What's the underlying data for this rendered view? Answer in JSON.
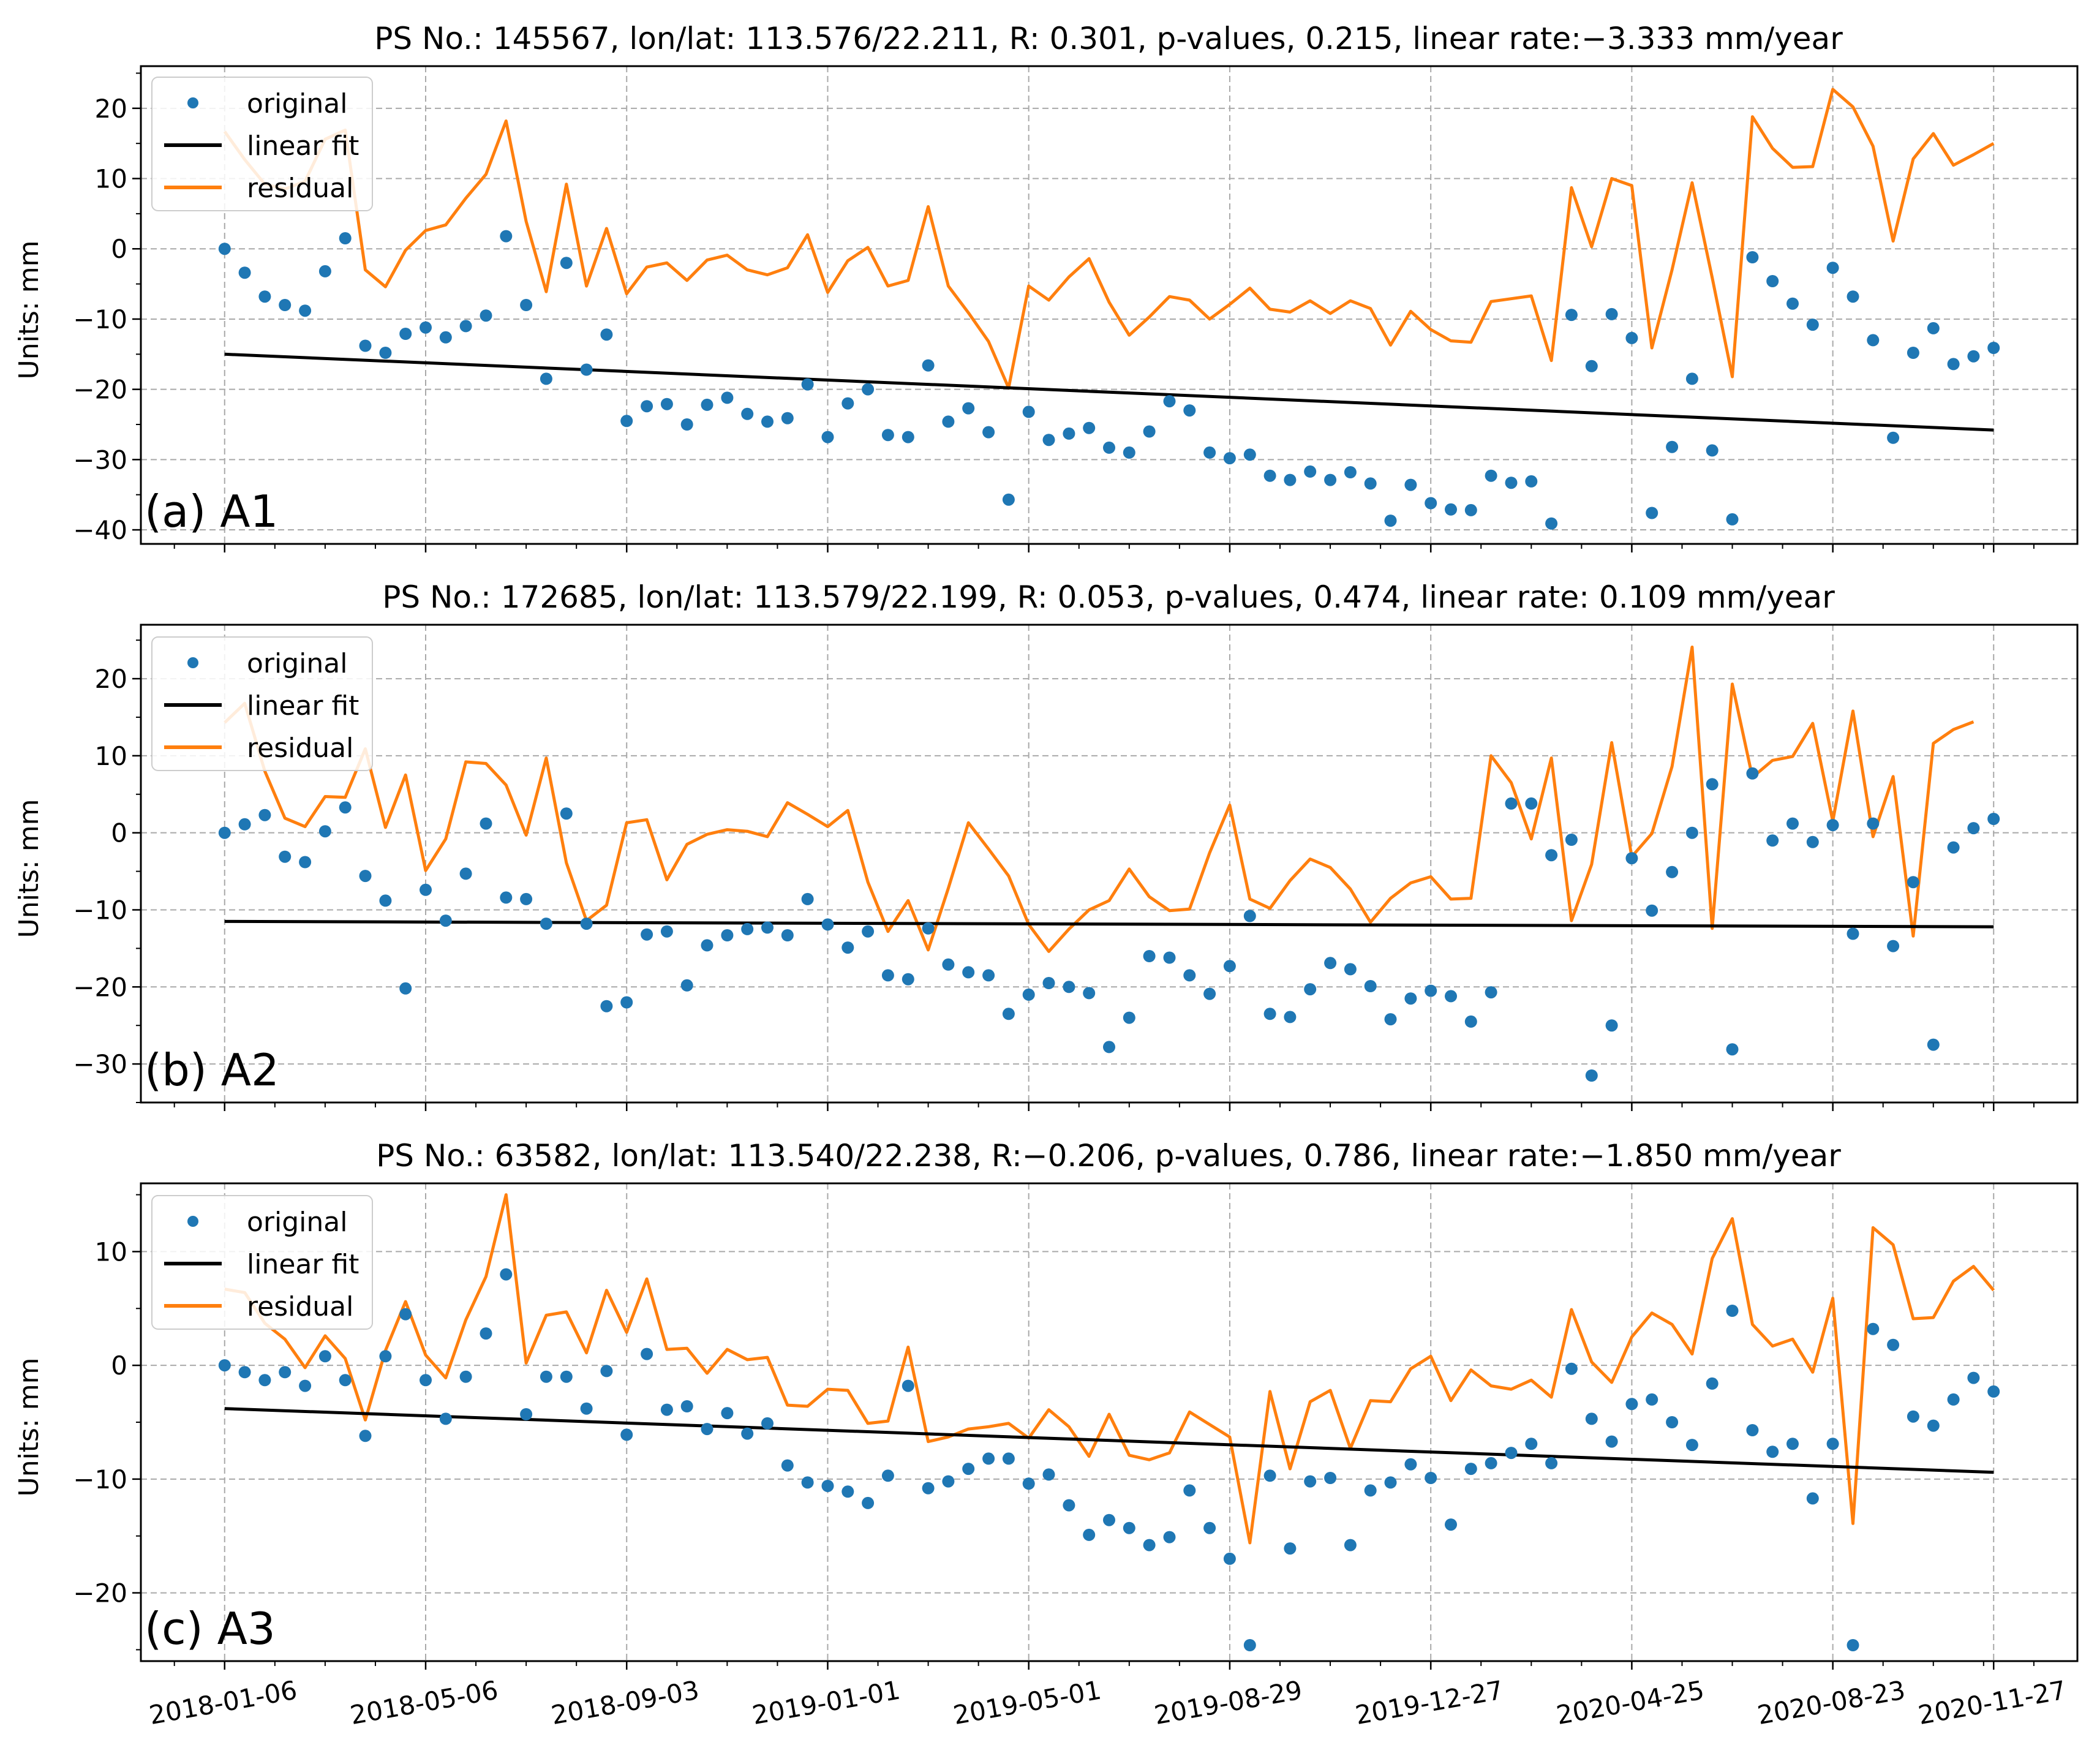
{
  "shared": {
    "x_tick_labels": [
      "2018-01-06",
      "2018-05-06",
      "2018-09-03",
      "2019-01-01",
      "2019-05-01",
      "2019-08-29",
      "2019-12-27",
      "2020-04-25",
      "2020-08-23",
      "2020-11-27"
    ],
    "x_tick_days": [
      0,
      120,
      240,
      360,
      480,
      600,
      720,
      840,
      960,
      1056
    ],
    "x_range_days": [
      -50,
      1106
    ],
    "legend": {
      "original": "original",
      "linear_fit": "linear fit",
      "residual": "residual"
    },
    "colors": {
      "original": "#1f77b4",
      "linear_fit": "#000000",
      "residual": "#ff7f0e",
      "grid": "#a9a9a9"
    },
    "ylabel": "Units: mm"
  },
  "chart_data": [
    {
      "type": "scatter+line",
      "panel_label": "(a) A1",
      "title": "PS No.: 145567, lon/lat: 113.576/22.211, R: 0.301, p-values, 0.215, linear rate:−3.333 mm/year",
      "ylabel": "Units: mm",
      "ylim": [
        -42,
        26
      ],
      "yticks": [
        -40,
        -30,
        -20,
        -10,
        0,
        10,
        20
      ],
      "linear_fit": [
        -15.0,
        -25.8
      ],
      "original": [
        0,
        -3.4,
        -6.8,
        -8.0,
        -8.8,
        -3.2,
        1.5,
        -13.8,
        -14.8,
        -12.1,
        -11.2,
        -12.6,
        -11.0,
        -9.5,
        1.8,
        -8.0,
        -18.5,
        -2.0,
        -17.2,
        -12.2,
        -24.5,
        -22.4,
        -22.1,
        -25.0,
        -22.2,
        -21.2,
        -23.5,
        -24.6,
        -24.1,
        -19.3,
        -26.8,
        -22.0,
        -20.0,
        -26.5,
        -26.8,
        -16.6,
        -24.6,
        -22.7,
        -26.1,
        -35.7,
        -23.2,
        -27.2,
        -26.3,
        -25.5,
        -28.3,
        -29.0,
        -26.0,
        -21.7,
        -23.0,
        -29.0,
        -29.8,
        -29.3,
        -32.3,
        -32.9,
        -31.7,
        -32.9,
        -31.8,
        -33.4,
        -38.7,
        -33.6,
        -36.2,
        -37.1,
        -37.2,
        -32.3,
        -33.3,
        -33.1,
        -39.1,
        -9.4,
        -16.7,
        -9.3,
        -12.7,
        -37.6,
        -28.2,
        -18.5,
        -28.7,
        -38.5,
        -1.2,
        -4.6,
        -7.8,
        -10.8,
        -2.7,
        -6.8,
        -13.0,
        -26.9,
        -14.8,
        -11.3,
        -16.4,
        -15.3,
        -14.1
      ],
      "residual": [
        16.7,
        12.7,
        9.2,
        8.5,
        9.6,
        15.6,
        16.9,
        -3.0,
        -5.4,
        -0.2,
        2.6,
        3.4,
        7.2,
        10.6,
        18.2,
        3.9,
        -6.1,
        9.2,
        -5.3,
        2.9,
        -6.4,
        -2.6,
        -2.0,
        -4.5,
        -1.6,
        -0.9,
        -3.0,
        -3.7,
        -2.7,
        2.0,
        -6.2,
        -1.7,
        0.2,
        -5.3,
        -4.5,
        6.0,
        -5.3,
        -9.1,
        -13.2,
        -19.8,
        -5.3,
        -7.3,
        -4.0,
        -1.4,
        -7.6,
        -12.3,
        -9.7,
        -6.8,
        -7.3,
        -10.0,
        -7.9,
        -5.6,
        -8.6,
        -9.0,
        -7.4,
        -9.2,
        -7.4,
        -8.5,
        -13.7,
        -8.9,
        -11.5,
        -13.1,
        -13.3,
        -7.5,
        -7.1,
        -6.7,
        -15.9,
        8.7,
        0.3,
        10.0,
        9.0,
        -14.1,
        -3.0,
        9.4,
        -4.1,
        -18.2,
        18.8,
        14.3,
        11.6,
        11.7,
        22.7,
        20.2,
        14.6,
        1.1,
        12.8,
        16.4,
        11.9,
        13.4,
        15.0
      ]
    },
    {
      "type": "scatter+line",
      "panel_label": "(b) A2",
      "title": "PS No.: 172685, lon/lat: 113.579/22.199, R: 0.053, p-values, 0.474, linear rate: 0.109 mm/year",
      "ylabel": "Units: mm",
      "ylim": [
        -35,
        27
      ],
      "yticks": [
        -30,
        -20,
        -10,
        0,
        10,
        20
      ],
      "linear_fit": [
        -11.5,
        -12.2
      ],
      "original": [
        0,
        1.1,
        2.3,
        -3.1,
        -3.8,
        0.2,
        3.3,
        -5.6,
        -8.8,
        -20.2,
        -7.4,
        -11.4,
        -5.3,
        1.2,
        -8.4,
        -8.6,
        -11.8,
        2.5,
        -11.8,
        -22.5,
        -22.0,
        -13.2,
        -12.8,
        -19.8,
        -14.6,
        -13.3,
        -12.5,
        -12.3,
        -13.3,
        -8.6,
        -11.9,
        -14.9,
        -12.8,
        -18.5,
        -19.0,
        -12.4,
        -17.1,
        -18.1,
        -18.5,
        -23.5,
        -21.0,
        -19.5,
        -20.0,
        -20.8,
        -27.8,
        -24.0,
        -16.0,
        -16.2,
        -18.5,
        -20.9,
        -17.3,
        -10.8,
        -23.5,
        -23.9,
        -20.3,
        -16.9,
        -17.7,
        -19.9,
        -24.2,
        -21.5,
        -20.5,
        -21.2,
        -24.5,
        -20.7,
        3.8,
        3.8,
        -2.9,
        -0.9,
        -31.5,
        -25.0,
        -3.3,
        -10.1,
        -5.1,
        0,
        6.3,
        -28.1,
        7.7,
        -1.0,
        1.2,
        -1.2,
        1.0,
        -13.1,
        1.2,
        -14.7,
        -6.4,
        -27.5,
        -1.9,
        0.6,
        1.8
      ],
      "residual": [
        14.3,
        16.8,
        8.0,
        1.9,
        0.8,
        4.7,
        4.6,
        10.9,
        0.7,
        7.5,
        -4.9,
        -0.8,
        9.2,
        9.0,
        6.2,
        -0.3,
        9.7,
        -3.9,
        -11.4,
        -9.4,
        1.3,
        1.7,
        -6.1,
        -1.5,
        -0.2,
        0.4,
        0.2,
        -0.5,
        3.9,
        2.4,
        0.8,
        2.9,
        -6.4,
        -12.8,
        -8.8,
        -15.2,
        -7.2,
        1.3,
        -2.1,
        -5.6,
        -11.9,
        -15.4,
        -12.5,
        -10.0,
        -8.8,
        -4.7,
        -8.3,
        -10.1,
        -9.9,
        -2.6,
        3.6,
        -8.6,
        -9.8,
        -6.2,
        -3.4,
        -4.5,
        -7.3,
        -11.6,
        -8.5,
        -6.5,
        -5.7,
        -8.6,
        -8.5,
        10.0,
        6.5,
        -0.8,
        9.7,
        -11.4,
        -4.1,
        11.7,
        -3.1,
        -0.1,
        8.6,
        24.1,
        -12.4,
        19.3,
        7.2,
        9.4,
        9.9,
        14.2,
        1.5,
        15.8,
        -0.5,
        7.3,
        -13.4,
        11.6,
        13.4,
        14.4
      ]
    },
    {
      "type": "scatter+line",
      "panel_label": "(c) A3",
      "title": "PS No.: 63582, lon/lat: 113.540/22.238, R:−0.206, p-values, 0.786, linear rate:−1.850 mm/year",
      "ylabel": "Units: mm",
      "ylim": [
        -26,
        16
      ],
      "yticks": [
        -20,
        -10,
        0,
        10
      ],
      "linear_fit": [
        -3.8,
        -9.4
      ],
      "original": [
        0,
        -0.6,
        -1.3,
        -0.6,
        -1.8,
        0.8,
        -1.3,
        -6.2,
        0.8,
        4.5,
        -1.3,
        -4.7,
        -1.0,
        2.8,
        8.0,
        -4.3,
        -1.0,
        -1.0,
        -3.8,
        -0.5,
        -6.1,
        1.0,
        -3.9,
        -3.6,
        -5.6,
        -4.2,
        -6.0,
        -5.1,
        -8.8,
        -10.3,
        -10.6,
        -11.1,
        -12.1,
        -9.7,
        -1.8,
        -10.8,
        -10.2,
        -9.1,
        -8.2,
        -8.2,
        -10.4,
        -9.6,
        -12.3,
        -14.9,
        -13.6,
        -14.3,
        -15.8,
        -15.1,
        -11.0,
        -14.3,
        -17.0,
        -24.6,
        -9.7,
        -16.1,
        -10.2,
        -9.9,
        -15.8,
        -11.0,
        -10.3,
        -8.7,
        -9.9,
        -14.0,
        -9.1,
        -8.6,
        -7.7,
        -6.9,
        -8.6,
        -0.3,
        -4.7,
        -6.7,
        -3.4,
        -3.0,
        -5.0,
        -7.0,
        -1.6,
        4.8,
        -5.7,
        -7.6,
        -6.9,
        -11.7,
        -6.9,
        -24.6,
        3.2,
        1.8,
        -4.5,
        -5.3,
        -3.0,
        -1.1,
        -2.3
      ],
      "residual": [
        6.7,
        6.4,
        3.7,
        2.3,
        -0.2,
        2.6,
        0.6,
        -4.8,
        1.3,
        5.6,
        0.9,
        -1.1,
        4.0,
        7.8,
        15.0,
        0.2,
        4.4,
        4.7,
        1.1,
        6.6,
        2.9,
        7.6,
        1.4,
        1.5,
        -0.7,
        1.4,
        0.5,
        0.7,
        -3.5,
        -3.6,
        -2.1,
        -2.2,
        -5.1,
        -4.9,
        1.6,
        -6.7,
        -6.3,
        -5.6,
        -5.4,
        -5.1,
        -6.4,
        -3.9,
        -5.4,
        -8.0,
        -4.3,
        -7.9,
        -8.3,
        -7.7,
        -4.1,
        -5.2,
        -6.3,
        -15.6,
        -2.3,
        -9.1,
        -3.2,
        -2.2,
        -7.3,
        -3.1,
        -3.2,
        -0.3,
        0.8,
        -3.1,
        -0.4,
        -1.8,
        -2.1,
        -1.3,
        -2.8,
        4.9,
        0.3,
        -1.5,
        2.5,
        4.6,
        3.6,
        1.0,
        9.4,
        12.9,
        3.6,
        1.7,
        2.3,
        -0.6,
        5.9,
        -13.9,
        12.1,
        10.6,
        4.1,
        4.2,
        7.4,
        8.7,
        6.6
      ]
    }
  ]
}
